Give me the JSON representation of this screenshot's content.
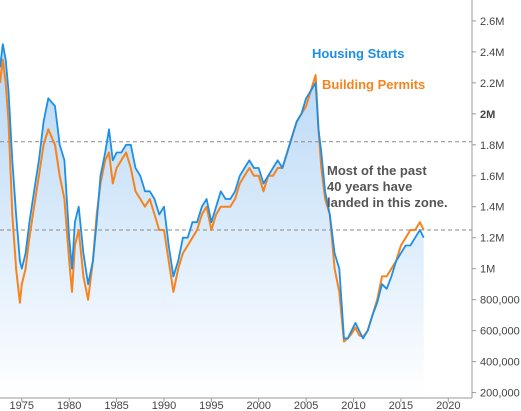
{
  "chart_data": {
    "type": "line",
    "title": "",
    "xlabel": "",
    "ylabel": "",
    "xlim": [
      1972.7,
      2022.5
    ],
    "ylim": [
      165000,
      2735000
    ],
    "x_ticks": [
      1975,
      1980,
      1985,
      1990,
      1995,
      2000,
      2005,
      2010,
      2015,
      2020
    ],
    "y_ticks": [
      {
        "value": 200000,
        "label": "200,000"
      },
      {
        "value": 400000,
        "label": "400,000"
      },
      {
        "value": 600000,
        "label": "600,000"
      },
      {
        "value": 800000,
        "label": "800,000"
      },
      {
        "value": 1000000,
        "label": "1M"
      },
      {
        "value": 1200000,
        "label": "1.2M"
      },
      {
        "value": 1400000,
        "label": "1.4M"
      },
      {
        "value": 1600000,
        "label": "1.6M"
      },
      {
        "value": 1800000,
        "label": "1.8M"
      },
      {
        "value": 2000000,
        "label": "2M"
      },
      {
        "value": 2200000,
        "label": "2.2M"
      },
      {
        "value": 2400000,
        "label": "2.4M"
      },
      {
        "value": 2600000,
        "label": "2.6M"
      }
    ],
    "reference_lines": [
      1820000,
      1250000
    ],
    "annotation": [
      "Most of the past",
      "40 years have",
      "landed in this zone."
    ],
    "colors": {
      "housing_starts": "#1e8fe6",
      "building_permits": "#f5841f",
      "reference_line": "#8a8a8a"
    },
    "series": [
      {
        "name": "Housing Starts",
        "x": [
          1972.7,
          1973.0,
          1973.3,
          1973.6,
          1974.0,
          1974.4,
          1974.8,
          1975.0,
          1975.4,
          1975.8,
          1976.3,
          1976.8,
          1977.3,
          1977.8,
          1978.5,
          1979.0,
          1979.5,
          1980.0,
          1980.3,
          1980.6,
          1981.0,
          1981.5,
          1982.0,
          1982.5,
          1982.9,
          1983.3,
          1983.8,
          1984.2,
          1984.6,
          1985.0,
          1985.5,
          1986.0,
          1986.5,
          1987.0,
          1987.5,
          1988.0,
          1988.5,
          1989.0,
          1989.5,
          1990.0,
          1990.5,
          1991.0,
          1991.5,
          1992.0,
          1992.5,
          1993.0,
          1993.5,
          1994.0,
          1994.5,
          1995.0,
          1995.5,
          1996.0,
          1996.5,
          1997.0,
          1997.5,
          1998.0,
          1998.5,
          1999.0,
          1999.5,
          2000.0,
          2000.5,
          2001.0,
          2001.5,
          2002.0,
          2002.5,
          2003.0,
          2003.5,
          2004.0,
          2004.5,
          2005.0,
          2005.5,
          2006.0,
          2006.3,
          2006.6,
          2007.0,
          2007.5,
          2008.0,
          2008.5,
          2009.0,
          2009.4,
          2009.8,
          2010.2,
          2010.6,
          2011.0,
          2011.5,
          2012.0,
          2012.5,
          2013.0,
          2013.5,
          2014.0,
          2014.5,
          2015.0,
          2015.5,
          2016.0,
          2016.5,
          2017.0,
          2017.4
        ],
        "y": [
          2300000,
          2450000,
          2350000,
          2150000,
          1700000,
          1350000,
          1050000,
          1000000,
          1100000,
          1300000,
          1500000,
          1700000,
          1950000,
          2100000,
          2050000,
          1800000,
          1700000,
          1200000,
          1000000,
          1300000,
          1400000,
          1100000,
          900000,
          1050000,
          1300000,
          1600000,
          1750000,
          1900000,
          1700000,
          1750000,
          1750000,
          1800000,
          1800000,
          1650000,
          1600000,
          1500000,
          1500000,
          1450000,
          1350000,
          1400000,
          1150000,
          950000,
          1050000,
          1200000,
          1200000,
          1300000,
          1300000,
          1400000,
          1450000,
          1300000,
          1400000,
          1500000,
          1450000,
          1450000,
          1500000,
          1600000,
          1650000,
          1700000,
          1650000,
          1650000,
          1550000,
          1600000,
          1650000,
          1700000,
          1650000,
          1750000,
          1850000,
          1950000,
          2000000,
          2100000,
          2150000,
          2200000,
          1900000,
          1750000,
          1500000,
          1350000,
          1100000,
          1000000,
          550000,
          550000,
          600000,
          650000,
          600000,
          550000,
          600000,
          700000,
          780000,
          900000,
          870000,
          950000,
          1050000,
          1100000,
          1150000,
          1150000,
          1200000,
          1250000,
          1200000
        ]
      },
      {
        "name": "Building Permits",
        "x": [
          1972.7,
          1973.0,
          1973.3,
          1973.6,
          1974.0,
          1974.4,
          1974.8,
          1975.0,
          1975.4,
          1975.8,
          1976.3,
          1976.8,
          1977.3,
          1977.8,
          1978.5,
          1979.0,
          1979.5,
          1980.0,
          1980.3,
          1980.6,
          1981.0,
          1981.5,
          1982.0,
          1982.5,
          1982.9,
          1983.3,
          1983.8,
          1984.2,
          1984.6,
          1985.0,
          1985.5,
          1986.0,
          1986.5,
          1987.0,
          1987.5,
          1988.0,
          1988.5,
          1989.0,
          1989.5,
          1990.0,
          1990.5,
          1991.0,
          1991.5,
          1992.0,
          1992.5,
          1993.0,
          1993.5,
          1994.0,
          1994.5,
          1995.0,
          1995.5,
          1996.0,
          1996.5,
          1997.0,
          1997.5,
          1998.0,
          1998.5,
          1999.0,
          1999.5,
          2000.0,
          2000.5,
          2001.0,
          2001.5,
          2002.0,
          2002.5,
          2003.0,
          2003.5,
          2004.0,
          2004.5,
          2005.0,
          2005.5,
          2006.0,
          2006.3,
          2006.6,
          2007.0,
          2007.5,
          2008.0,
          2008.5,
          2009.0,
          2009.4,
          2009.8,
          2010.2,
          2010.6,
          2011.0,
          2011.5,
          2012.0,
          2012.5,
          2013.0,
          2013.5,
          2014.0,
          2014.5,
          2015.0,
          2015.5,
          2016.0,
          2016.5,
          2017.0,
          2017.4
        ],
        "y": [
          2200000,
          2350000,
          2200000,
          1950000,
          1350000,
          1000000,
          780000,
          900000,
          1000000,
          1200000,
          1400000,
          1600000,
          1800000,
          1900000,
          1800000,
          1600000,
          1450000,
          1050000,
          850000,
          1150000,
          1250000,
          950000,
          800000,
          1050000,
          1350000,
          1550000,
          1700000,
          1750000,
          1550000,
          1650000,
          1700000,
          1750000,
          1650000,
          1500000,
          1450000,
          1400000,
          1450000,
          1350000,
          1250000,
          1250000,
          1050000,
          850000,
          1000000,
          1100000,
          1150000,
          1200000,
          1250000,
          1350000,
          1400000,
          1250000,
          1350000,
          1400000,
          1400000,
          1400000,
          1450000,
          1550000,
          1600000,
          1650000,
          1600000,
          1600000,
          1500000,
          1600000,
          1600000,
          1650000,
          1650000,
          1750000,
          1850000,
          1950000,
          2000000,
          2050000,
          2150000,
          2250000,
          1900000,
          1650000,
          1450000,
          1350000,
          1000000,
          850000,
          530000,
          550000,
          580000,
          620000,
          570000,
          560000,
          600000,
          700000,
          800000,
          950000,
          950000,
          1000000,
          1050000,
          1150000,
          1200000,
          1250000,
          1250000,
          1300000,
          1250000
        ]
      }
    ]
  }
}
